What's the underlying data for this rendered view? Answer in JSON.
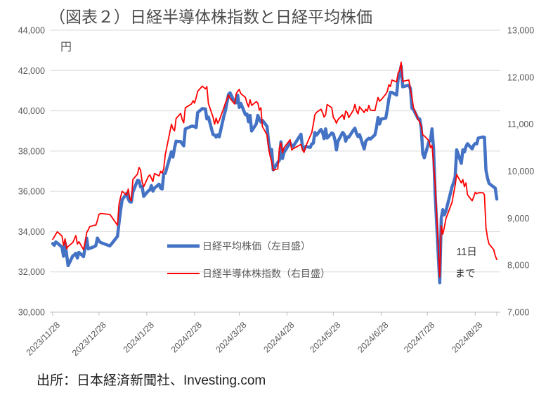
{
  "chart_data": {
    "type": "line",
    "title": "（図表２）日経半導体株指数と日経平均株価",
    "unit_label": "円",
    "source": "出所：日本経済新聞社、Investing.com",
    "annotation": {
      "line1": "11日",
      "line2": "まで"
    },
    "colors": {
      "nikkei225": "#4472C4",
      "semiconductor": "#FF0000",
      "gridline": "#D9D9D9",
      "axis_line": "#BFBFBF",
      "axis_text": "#595959",
      "title_text": "#4a4a4a",
      "source_text": "#1f1f1f"
    },
    "legend": [
      {
        "label": "日経平均株価（左目盛）",
        "color": "#4472C4"
      },
      {
        "label": "日経半導体株指数（右目盛）",
        "color": "#FF0000"
      }
    ],
    "axes": {
      "left": {
        "min": 30000,
        "max": 44000,
        "tick_labels": [
          "30,000",
          "32,000",
          "34,000",
          "36,000",
          "38,000",
          "40,000",
          "42,000",
          "44,000"
        ]
      },
      "right": {
        "min": 7000,
        "max": 13000,
        "tick_labels": [
          "7,000",
          "8,000",
          "9,000",
          "10,000",
          "11,000",
          "12,000",
          "13,000"
        ]
      },
      "x": {
        "start": "2023-11-28",
        "end": "2024-09-11",
        "grid": true,
        "tick_labels": [
          "2023/11/28",
          "2023/12/28",
          "2024/1/28",
          "2024/2/28",
          "2024/3/28",
          "2024/4/28",
          "2024/5/28",
          "2024/6/28",
          "2024/7/28",
          "2024/8/28"
        ]
      }
    },
    "x": [
      "2023-11-28",
      "2023-11-29",
      "2023-11-30",
      "2023-12-01",
      "2023-12-04",
      "2023-12-05",
      "2023-12-06",
      "2023-12-07",
      "2023-12-08",
      "2023-12-11",
      "2023-12-12",
      "2023-12-13",
      "2023-12-14",
      "2023-12-15",
      "2023-12-18",
      "2023-12-19",
      "2023-12-20",
      "2023-12-21",
      "2023-12-22",
      "2023-12-25",
      "2023-12-26",
      "2023-12-27",
      "2023-12-28",
      "2023-12-29",
      "2024-01-04",
      "2024-01-05",
      "2024-01-09",
      "2024-01-10",
      "2024-01-11",
      "2024-01-12",
      "2024-01-15",
      "2024-01-16",
      "2024-01-17",
      "2024-01-18",
      "2024-01-19",
      "2024-01-22",
      "2024-01-23",
      "2024-01-24",
      "2024-01-25",
      "2024-01-26",
      "2024-01-29",
      "2024-01-30",
      "2024-01-31",
      "2024-02-01",
      "2024-02-02",
      "2024-02-05",
      "2024-02-06",
      "2024-02-07",
      "2024-02-08",
      "2024-02-09",
      "2024-02-13",
      "2024-02-14",
      "2024-02-15",
      "2024-02-16",
      "2024-02-19",
      "2024-02-20",
      "2024-02-21",
      "2024-02-22",
      "2024-02-26",
      "2024-02-27",
      "2024-02-28",
      "2024-02-29",
      "2024-03-01",
      "2024-03-04",
      "2024-03-05",
      "2024-03-06",
      "2024-03-07",
      "2024-03-08",
      "2024-03-11",
      "2024-03-12",
      "2024-03-13",
      "2024-03-14",
      "2024-03-15",
      "2024-03-18",
      "2024-03-19",
      "2024-03-21",
      "2024-03-22",
      "2024-03-25",
      "2024-03-26",
      "2024-03-27",
      "2024-03-28",
      "2024-03-29",
      "2024-04-01",
      "2024-04-02",
      "2024-04-03",
      "2024-04-04",
      "2024-04-05",
      "2024-04-08",
      "2024-04-09",
      "2024-04-10",
      "2024-04-11",
      "2024-04-12",
      "2024-04-15",
      "2024-04-16",
      "2024-04-17",
      "2024-04-18",
      "2024-04-19",
      "2024-04-22",
      "2024-04-23",
      "2024-04-24",
      "2024-04-25",
      "2024-04-26",
      "2024-04-30",
      "2024-05-01",
      "2024-05-02",
      "2024-05-07",
      "2024-05-08",
      "2024-05-09",
      "2024-05-10",
      "2024-05-13",
      "2024-05-14",
      "2024-05-15",
      "2024-05-16",
      "2024-05-17",
      "2024-05-20",
      "2024-05-21",
      "2024-05-22",
      "2024-05-23",
      "2024-05-24",
      "2024-05-27",
      "2024-05-28",
      "2024-05-29",
      "2024-05-30",
      "2024-05-31",
      "2024-06-03",
      "2024-06-04",
      "2024-06-05",
      "2024-06-06",
      "2024-06-07",
      "2024-06-10",
      "2024-06-11",
      "2024-06-12",
      "2024-06-13",
      "2024-06-14",
      "2024-06-17",
      "2024-06-18",
      "2024-06-19",
      "2024-06-20",
      "2024-06-21",
      "2024-06-24",
      "2024-06-25",
      "2024-06-26",
      "2024-06-27",
      "2024-06-28",
      "2024-07-01",
      "2024-07-02",
      "2024-07-03",
      "2024-07-04",
      "2024-07-05",
      "2024-07-08",
      "2024-07-09",
      "2024-07-10",
      "2024-07-11",
      "2024-07-12",
      "2024-07-16",
      "2024-07-17",
      "2024-07-18",
      "2024-07-19",
      "2024-07-22",
      "2024-07-23",
      "2024-07-24",
      "2024-07-25",
      "2024-07-26",
      "2024-07-29",
      "2024-07-30",
      "2024-07-31",
      "2024-08-01",
      "2024-08-02",
      "2024-08-05",
      "2024-08-06",
      "2024-08-07",
      "2024-08-08",
      "2024-08-09",
      "2024-08-13",
      "2024-08-14",
      "2024-08-15",
      "2024-08-16",
      "2024-08-19",
      "2024-08-20",
      "2024-08-21",
      "2024-08-22",
      "2024-08-23",
      "2024-08-26",
      "2024-08-27",
      "2024-08-28",
      "2024-08-29",
      "2024-08-30",
      "2024-09-02",
      "2024-09-03",
      "2024-09-04",
      "2024-09-05",
      "2024-09-06",
      "2024-09-09",
      "2024-09-10",
      "2024-09-11"
    ],
    "series": [
      {
        "name": "日経平均株価（左目盛）",
        "axis": "left",
        "color": "#4472C4",
        "width": 4.5,
        "values": [
          33408,
          33321,
          33487,
          33432,
          33231,
          32776,
          33445,
          32858,
          32308,
          32791,
          32843,
          32926,
          32686,
          32970,
          32758,
          33219,
          33675,
          33140,
          33169,
          33254,
          33305,
          33681,
          33539,
          33464,
          33288,
          33377,
          33763,
          34441,
          35049,
          35577,
          35901,
          35619,
          35477,
          35466,
          35963,
          36546,
          36517,
          36226,
          36236,
          35751,
          36026,
          36065,
          36286,
          36011,
          36158,
          36354,
          36160,
          36119,
          36863,
          36897,
          37963,
          37703,
          38157,
          38487,
          38470,
          38363,
          38262,
          39098,
          39233,
          39239,
          39208,
          39166,
          39910,
          40109,
          40097,
          40090,
          39598,
          39688,
          38820,
          38797,
          38695,
          38807,
          38708,
          39740,
          40003,
          40815,
          40888,
          40414,
          40398,
          40762,
          40168,
          40369,
          39803,
          39838,
          39451,
          39773,
          38992,
          39347,
          39773,
          39581,
          39442,
          39524,
          39232,
          38471,
          37961,
          38079,
          37068,
          37438,
          37552,
          38460,
          37628,
          37934,
          38405,
          38274,
          38236,
          38835,
          38202,
          38073,
          38229,
          38179,
          38356,
          38385,
          38920,
          38787,
          39069,
          38946,
          38617,
          39103,
          38646,
          38900,
          38855,
          38557,
          38054,
          38487,
          38923,
          38837,
          38490,
          38703,
          38683,
          39038,
          39134,
          38876,
          38720,
          38814,
          38102,
          38482,
          38570,
          38633,
          38596,
          38804,
          39173,
          39667,
          39341,
          39583,
          39631,
          40074,
          40580,
          40913,
          40912,
          40780,
          41580,
          41831,
          42224,
          41190,
          41275,
          41097,
          40126,
          40063,
          39599,
          39594,
          39154,
          37869,
          37667,
          38468,
          38525,
          39101,
          38126,
          35909,
          31458,
          34675,
          35089,
          34831,
          35025,
          36232,
          36442,
          36726,
          38062,
          37388,
          38063,
          37951,
          38211,
          38364,
          38110,
          38288,
          38371,
          38362,
          38648,
          38700,
          38686,
          37047,
          36657,
          36391,
          36215,
          36159,
          35619
        ]
      },
      {
        "name": "日経半導体株指数（右目盛）",
        "axis": "right",
        "color": "#FF0000",
        "width": 1.8,
        "values": [
          8550,
          8600,
          8660,
          8710,
          8620,
          8420,
          8560,
          8350,
          8400,
          8480,
          8550,
          8630,
          8450,
          8500,
          8330,
          8480,
          8690,
          8750,
          8820,
          8850,
          8850,
          8950,
          9080,
          9100,
          9080,
          9040,
          8850,
          9300,
          9450,
          9570,
          9490,
          9620,
          9420,
          9370,
          9820,
          9940,
          10080,
          10020,
          9770,
          9670,
          9890,
          9920,
          9850,
          9780,
          9950,
          9900,
          10000,
          9960,
          10050,
          10350,
          11000,
          10900,
          10860,
          11120,
          11230,
          11100,
          11030,
          11350,
          11430,
          11500,
          11450,
          11560,
          11700,
          11810,
          11780,
          11750,
          11800,
          11440,
          11150,
          11000,
          11130,
          11020,
          11080,
          11350,
          11450,
          11620,
          11550,
          11430,
          11650,
          11700,
          11740,
          11650,
          11570,
          11450,
          11370,
          11520,
          11400,
          11480,
          11450,
          11300,
          11350,
          10950,
          10770,
          10500,
          10320,
          10200,
          10020,
          10050,
          10500,
          10600,
          10390,
          10500,
          10670,
          10450,
          10480,
          10570,
          10450,
          10400,
          10520,
          10750,
          10820,
          11000,
          11200,
          11250,
          11320,
          11250,
          11150,
          11200,
          11420,
          11350,
          11140,
          11100,
          11020,
          11100,
          11200,
          11100,
          11280,
          11250,
          11140,
          11300,
          11420,
          11290,
          11220,
          11370,
          11250,
          11320,
          11280,
          11400,
          11300,
          11290,
          11440,
          11570,
          11490,
          11520,
          11640,
          11700,
          11840,
          11800,
          11940,
          11900,
          12090,
          12150,
          12320,
          11910,
          11940,
          11740,
          11570,
          11350,
          11100,
          11050,
          10950,
          10770,
          10750,
          10650,
          10500,
          10550,
          10150,
          9750,
          7750,
          8840,
          8660,
          8810,
          8990,
          9340,
          9530,
          9700,
          9930,
          9750,
          9820,
          9670,
          9750,
          9500,
          9370,
          9450,
          9550,
          9520,
          9540,
          9540,
          9500,
          8800,
          8580,
          8450,
          8330,
          8200,
          8120
        ]
      }
    ]
  }
}
